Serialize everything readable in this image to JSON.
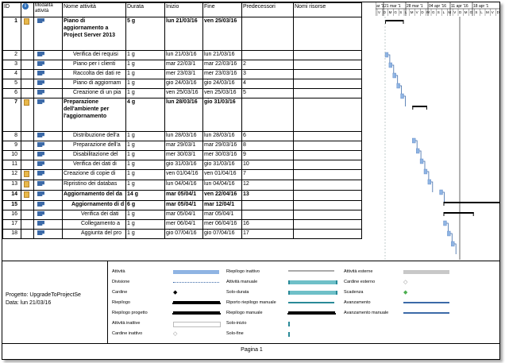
{
  "columns": {
    "id": "ID",
    "mode": "Modalità attività",
    "name": "Nome attività",
    "duration": "Durata",
    "start": "Inizio",
    "finish": "Fine",
    "predecessors": "Predecessori",
    "resources": "Nomi risorse"
  },
  "timeline_header": {
    "weeks": [
      "ar '1",
      "21 mar '1",
      "28 mar '1",
      "04 apr '16",
      "11 apr '16",
      "18 apr '1"
    ],
    "days": "V D M G S L M V D M G S L M V D M G S L M V D"
  },
  "tasks": [
    {
      "id": "1",
      "name": "Piano di aggiornamento a Project Server 2013",
      "duration": "5 g",
      "start": "lun 21/03/16",
      "finish": "ven 25/03/16",
      "pred": "",
      "summary": true,
      "note": true
    },
    {
      "id": "2",
      "name": "Verifica dei requisi",
      "duration": "1 g",
      "start": "lun 21/03/16",
      "finish": "lun 21/03/16",
      "pred": "",
      "summary": false,
      "note": false
    },
    {
      "id": "3",
      "name": "Piano per i clienti",
      "duration": "1 g",
      "start": "mar 22/03/1",
      "finish": "mar 22/03/16",
      "pred": "2",
      "summary": false,
      "note": false
    },
    {
      "id": "4",
      "name": "Raccolta dei dati re",
      "duration": "1 g",
      "start": "mer 23/03/1",
      "finish": "mer 23/03/16",
      "pred": "3",
      "summary": false,
      "note": false
    },
    {
      "id": "5",
      "name": "Piano di aggiornam",
      "duration": "1 g",
      "start": "gio 24/03/16",
      "finish": "gio 24/03/16",
      "pred": "4",
      "summary": false,
      "note": false
    },
    {
      "id": "6",
      "name": "Creazione di un pia",
      "duration": "1 g",
      "start": "ven 25/03/16",
      "finish": "ven 25/03/16",
      "pred": "5",
      "summary": false,
      "note": false
    },
    {
      "id": "7",
      "name": "Preparazione dell'ambiente per l'aggiornamento",
      "duration": "4 g",
      "start": "lun 28/03/16",
      "finish": "gio 31/03/16",
      "pred": "",
      "summary": true,
      "note": true
    },
    {
      "id": "8",
      "name": "Distribuzione dell'a",
      "duration": "1 g",
      "start": "lun 28/03/16",
      "finish": "lun 28/03/16",
      "pred": "6",
      "summary": false,
      "note": false
    },
    {
      "id": "9",
      "name": "Preparazione dell'a",
      "duration": "1 g",
      "start": "mar 29/03/1",
      "finish": "mar 29/03/16",
      "pred": "8",
      "summary": false,
      "note": false
    },
    {
      "id": "10",
      "name": "Disabilitazione del",
      "duration": "1 g",
      "start": "mer 30/03/1",
      "finish": "mer 30/03/16",
      "pred": "9",
      "summary": false,
      "note": false
    },
    {
      "id": "11",
      "name": "Verifica dei dati di",
      "duration": "1 g",
      "start": "gio 31/03/16",
      "finish": "gio 31/03/16",
      "pred": "10",
      "summary": false,
      "note": false
    },
    {
      "id": "12",
      "name": "Creazione di copie di",
      "duration": "1 g",
      "start": "ven 01/04/16",
      "finish": "ven 01/04/16",
      "pred": "7",
      "summary": false,
      "note": true
    },
    {
      "id": "13",
      "name": "Ripristino dei databas",
      "duration": "1 g",
      "start": "lun 04/04/16",
      "finish": "lun 04/04/16",
      "pred": "12",
      "summary": false,
      "note": true
    },
    {
      "id": "14",
      "name": "Aggiornamento del da",
      "duration": "14 g",
      "start": "mar 05/04/1",
      "finish": "ven 22/04/16",
      "pred": "13",
      "summary": true,
      "note": true
    },
    {
      "id": "15",
      "name": "Aggiornamento di d",
      "duration": "6 g",
      "start": "mar 05/04/1",
      "finish": "mar 12/04/1",
      "pred": "",
      "summary": true,
      "note": false
    },
    {
      "id": "16",
      "name": "Verifica dei dati",
      "duration": "1 g",
      "start": "mar 05/04/1",
      "finish": "mar 05/04/1",
      "pred": "",
      "summary": false,
      "note": false
    },
    {
      "id": "17",
      "name": "Collegamento a",
      "duration": "1 g",
      "start": "mer 06/04/1",
      "finish": "mer 06/04/16",
      "pred": "16",
      "summary": false,
      "note": false
    },
    {
      "id": "18",
      "name": "Aggiunta del pro",
      "duration": "1 g",
      "start": "gio 07/04/16",
      "finish": "gio 07/04/16",
      "pred": "17",
      "summary": false,
      "note": false
    }
  ],
  "legend": {
    "project": "Progetto: UpgradeToProjectSe",
    "date": "Data: lun 21/03/16",
    "items": [
      "Attività",
      "Divisione",
      "Cardine",
      "Riepilogo",
      "Riepilogo progetto",
      "Attività inattive",
      "Cardine inattivo",
      "Riepilogo inattivo",
      "Attività manuale",
      "Solo-durata",
      "Riporto riepilogo manuale",
      "Riepilogo manuale",
      "Solo-inizio",
      "Solo-fine",
      "Attività esterne",
      "Cardine esterno",
      "Scadenza",
      "Avanzamento",
      "Avanzamento manuale"
    ]
  },
  "footer": "Pagina 1",
  "colors": {
    "task_bar": "#8fb4e3",
    "summary": "#000000",
    "accent": "#3c6aa8"
  }
}
